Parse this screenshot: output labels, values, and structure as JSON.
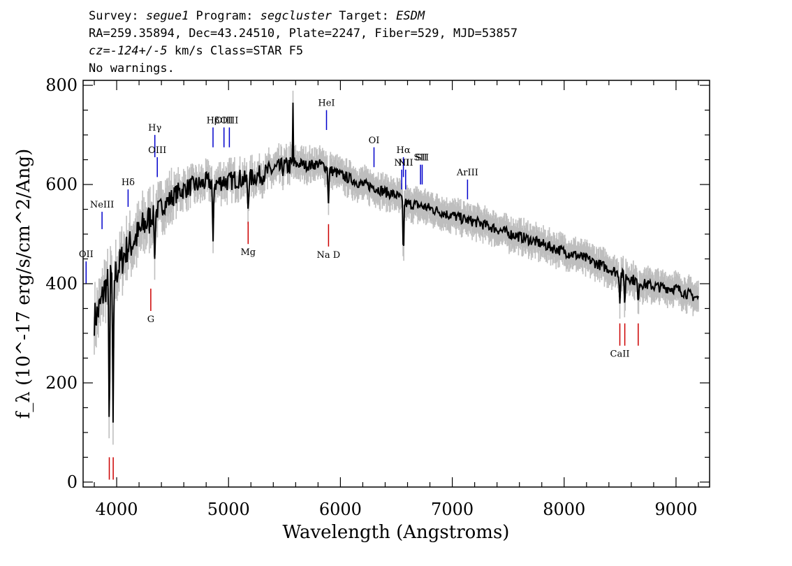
{
  "header": {
    "line1": {
      "survey_label": "Survey: ",
      "survey": "segue1",
      "program_label": " Program: ",
      "program": "segcluster",
      "target_label": " Target: ",
      "target": "ESDM"
    },
    "line2": "RA=259.35894, Dec=43.24510, Plate=2247, Fiber=529, MJD=53857",
    "line3": {
      "cz": "cz=-124+/-5",
      "rest": " km/s Class=STAR F5"
    },
    "line4": "No warnings."
  },
  "colors": {
    "flux": "#000000",
    "error": "#bebebe",
    "emission": "#0000cc",
    "absorption": "#cc0000",
    "axis": "#000000"
  },
  "chart_data": {
    "type": "line",
    "xlabel": "Wavelength (Angstroms)",
    "ylabel": "f_λ (10^-17 erg/s/cm^2/Ang)",
    "xlim": [
      3700,
      9300
    ],
    "ylim": [
      -10,
      810
    ],
    "xticks": [
      4000,
      5000,
      6000,
      7000,
      8000,
      9000
    ],
    "yticks": [
      0,
      200,
      400,
      600,
      800
    ],
    "grid": false,
    "series": [
      {
        "values_note": "",
        "x": [
          3800,
          3830,
          3860,
          3890,
          3920,
          3950,
          3980,
          4010,
          4040,
          4070,
          4100,
          4130,
          4160,
          4200,
          4250,
          4300,
          4350,
          4400,
          4450,
          4500,
          4550,
          4600,
          4650,
          4700,
          4750,
          4800,
          4850,
          4900,
          4950,
          5000,
          5050,
          5100,
          5150,
          5200,
          5250,
          5300,
          5350,
          5400,
          5450,
          5500,
          5550,
          5600,
          5650,
          5700,
          5750,
          5800,
          5850,
          5900,
          5950,
          6000,
          6050,
          6100,
          6150,
          6200,
          6250,
          6300,
          6350,
          6400,
          6450,
          6500,
          6550,
          6600,
          6650,
          6700,
          6750,
          6800,
          6850,
          6900,
          6950,
          7000,
          7100,
          7200,
          7300,
          7400,
          7500,
          7600,
          7700,
          7800,
          7900,
          8000,
          8100,
          8200,
          8300,
          8400,
          8500,
          8600,
          8700,
          8800,
          8900,
          9000,
          9100,
          9200
        ],
        "y": [
          330,
          340,
          360,
          390,
          400,
          410,
          415,
          430,
          445,
          460,
          470,
          480,
          490,
          500,
          520,
          530,
          545,
          555,
          565,
          575,
          585,
          590,
          595,
          598,
          600,
          605,
          605,
          602,
          608,
          605,
          610,
          612,
          608,
          612,
          618,
          620,
          625,
          630,
          632,
          635,
          638,
          640,
          642,
          638,
          640,
          642,
          638,
          630,
          625,
          620,
          615,
          610,
          605,
          600,
          598,
          595,
          590,
          585,
          582,
          578,
          570,
          560,
          560,
          558,
          555,
          552,
          548,
          545,
          540,
          538,
          530,
          525,
          518,
          510,
          502,
          495,
          488,
          480,
          472,
          465,
          458,
          450,
          440,
          430,
          420,
          410,
          400,
          395,
          392,
          390,
          380,
          370
        ]
      }
    ],
    "dips": [
      {
        "x": 3934,
        "y": 70
      },
      {
        "x": 3968,
        "y": 120
      },
      {
        "x": 4102,
        "y": 470
      },
      {
        "x": 4340,
        "y": 450
      },
      {
        "x": 4861,
        "y": 470
      },
      {
        "x": 5175,
        "y": 545
      },
      {
        "x": 5893,
        "y": 555
      },
      {
        "x": 6563,
        "y": 440
      },
      {
        "x": 8498,
        "y": 360
      },
      {
        "x": 8542,
        "y": 350
      },
      {
        "x": 8662,
        "y": 355
      }
    ],
    "spikes": [
      {
        "x": 5577,
        "y": 765
      }
    ],
    "emission_lines": [
      {
        "label": "OII",
        "x": 3727,
        "y0": 400,
        "y1": 445
      },
      {
        "label": "NeIII",
        "x": 3869,
        "y0": 510,
        "y1": 545
      },
      {
        "label": "Hδ",
        "x": 4102,
        "y0": 555,
        "y1": 590
      },
      {
        "label": "Hγ",
        "x": 4341,
        "y0": 655,
        "y1": 700
      },
      {
        "label": "OIII",
        "x": 4363,
        "y0": 615,
        "y1": 655
      },
      {
        "label": "Hβ",
        "x": 4861,
        "y0": 675,
        "y1": 715
      },
      {
        "label": "OIII",
        "x": 4959,
        "y0": 675,
        "y1": 715
      },
      {
        "label": "OIII",
        "x": 5007,
        "y0": 675,
        "y1": 715
      },
      {
        "label": "HeI",
        "x": 5876,
        "y0": 710,
        "y1": 750
      },
      {
        "label": "OI",
        "x": 6300,
        "y0": 635,
        "y1": 675
      },
      {
        "label": "NII",
        "x": 6548,
        "y0": 590,
        "y1": 630
      },
      {
        "label": "Hα",
        "x": 6563,
        "y0": 615,
        "y1": 655
      },
      {
        "label": "NII",
        "x": 6583,
        "y0": 590,
        "y1": 630
      },
      {
        "label": "SII",
        "x": 6716,
        "y0": 600,
        "y1": 640
      },
      {
        "label": "SII",
        "x": 6731,
        "y0": 600,
        "y1": 640
      },
      {
        "label": "ArIII",
        "x": 7136,
        "y0": 570,
        "y1": 610
      }
    ],
    "absorption_lines": [
      {
        "label": "",
        "x": 3934,
        "y0": 5,
        "y1": 50
      },
      {
        "label": "",
        "x": 3969,
        "y0": 5,
        "y1": 50
      },
      {
        "label": "G",
        "x": 4305,
        "y0": 345,
        "y1": 390
      },
      {
        "label": "Mg",
        "x": 5175,
        "y0": 480,
        "y1": 525
      },
      {
        "label": "Na D",
        "x": 5894,
        "y0": 475,
        "y1": 520
      },
      {
        "label": "CaII",
        "x": 8498,
        "y0": 275,
        "y1": 320
      },
      {
        "label": "",
        "x": 8542,
        "y0": 275,
        "y1": 320
      },
      {
        "label": "",
        "x": 8662,
        "y0": 275,
        "y1": 320
      }
    ]
  }
}
